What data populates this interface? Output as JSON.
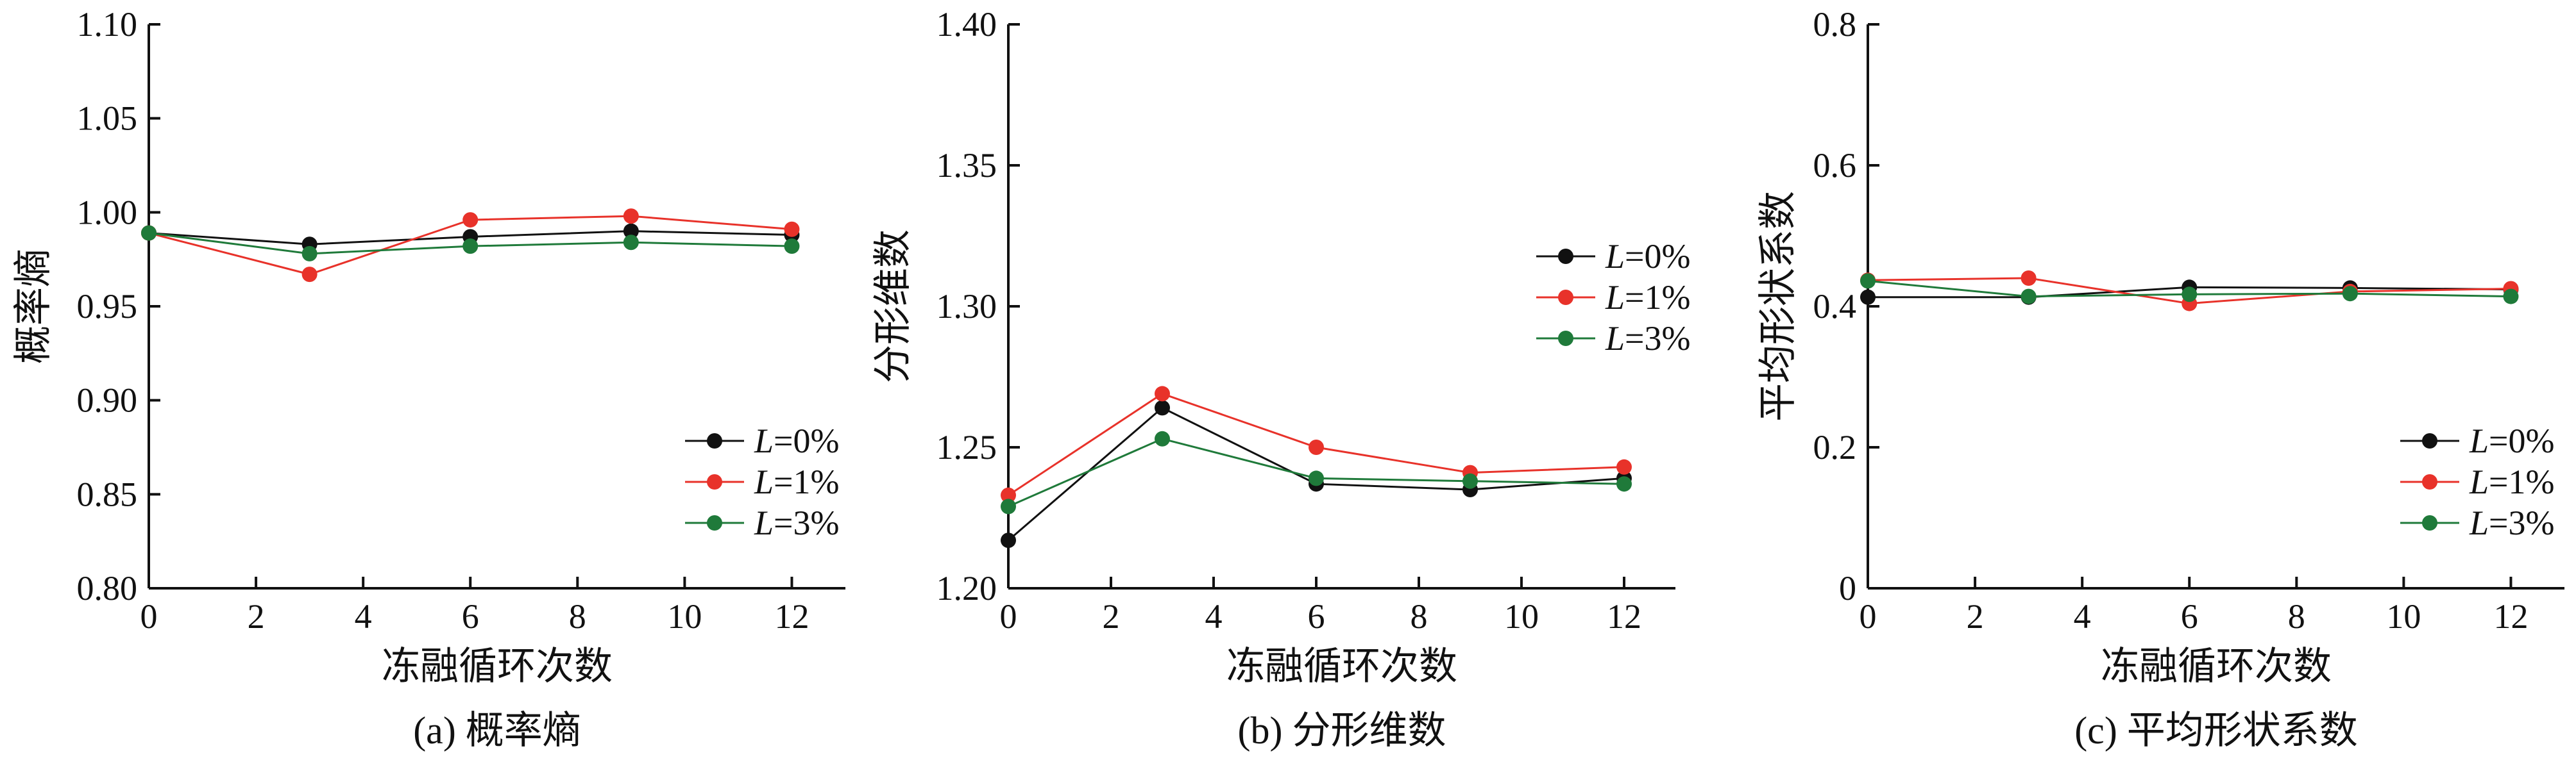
{
  "colors": {
    "L0": "#111111",
    "L1": "#e8322a",
    "L3": "#1f7a3a"
  },
  "chart_data": [
    {
      "type": "line",
      "caption": "(a) 概率熵",
      "xlabel": "冻融循环次数",
      "ylabel": "概率熵",
      "xlim": [
        0,
        13
      ],
      "ylim": [
        0.8,
        1.1
      ],
      "xticks": [
        "0",
        "2",
        "4",
        "6",
        "8",
        "10",
        "12"
      ],
      "yticks": [
        "0.80",
        "0.85",
        "0.90",
        "0.95",
        "1.00",
        "1.05",
        "1.10"
      ],
      "legend_position": "bottom-right",
      "x": [
        0,
        3,
        6,
        9,
        12
      ],
      "series": [
        {
          "name": "L=0%",
          "color_key": "L0",
          "values": [
            0.989,
            0.983,
            0.987,
            0.99,
            0.988
          ]
        },
        {
          "name": "L=1%",
          "color_key": "L1",
          "values": [
            0.989,
            0.967,
            0.996,
            0.998,
            0.991
          ]
        },
        {
          "name": "L=3%",
          "color_key": "L3",
          "values": [
            0.989,
            0.978,
            0.982,
            0.984,
            0.982
          ]
        }
      ]
    },
    {
      "type": "line",
      "caption": "(b) 分形维数",
      "xlabel": "冻融循环次数",
      "ylabel": "分形维数",
      "xlim": [
        0,
        13
      ],
      "ylim": [
        1.2,
        1.4
      ],
      "xticks": [
        "0",
        "2",
        "4",
        "6",
        "8",
        "10",
        "12"
      ],
      "yticks": [
        "1.20",
        "1.25",
        "1.30",
        "1.35",
        "1.40"
      ],
      "legend_position": "top-right",
      "x": [
        0,
        3,
        6,
        9,
        12
      ],
      "series": [
        {
          "name": "L=0%",
          "color_key": "L0",
          "values": [
            1.217,
            1.264,
            1.237,
            1.235,
            1.239
          ]
        },
        {
          "name": "L=1%",
          "color_key": "L1",
          "values": [
            1.233,
            1.269,
            1.25,
            1.241,
            1.243
          ]
        },
        {
          "name": "L=3%",
          "color_key": "L3",
          "values": [
            1.229,
            1.253,
            1.239,
            1.238,
            1.237
          ]
        }
      ]
    },
    {
      "type": "line",
      "caption": "(c) 平均形状系数",
      "xlabel": "冻融循环次数",
      "ylabel": "平均形状系数",
      "xlim": [
        0,
        13
      ],
      "ylim": [
        0,
        0.8
      ],
      "xticks": [
        "0",
        "2",
        "4",
        "6",
        "8",
        "10",
        "12"
      ],
      "yticks": [
        "0",
        "0.2",
        "0.4",
        "0.6",
        "0.8"
      ],
      "legend_position": "bottom-right",
      "x": [
        0,
        3,
        6,
        9,
        12
      ],
      "series": [
        {
          "name": "L=0%",
          "color_key": "L0",
          "values": [
            0.413,
            0.413,
            0.427,
            0.426,
            0.424
          ]
        },
        {
          "name": "L=1%",
          "color_key": "L1",
          "values": [
            0.437,
            0.44,
            0.404,
            0.421,
            0.425
          ]
        },
        {
          "name": "L=3%",
          "color_key": "L3",
          "values": [
            0.436,
            0.414,
            0.417,
            0.418,
            0.414
          ]
        }
      ]
    }
  ]
}
